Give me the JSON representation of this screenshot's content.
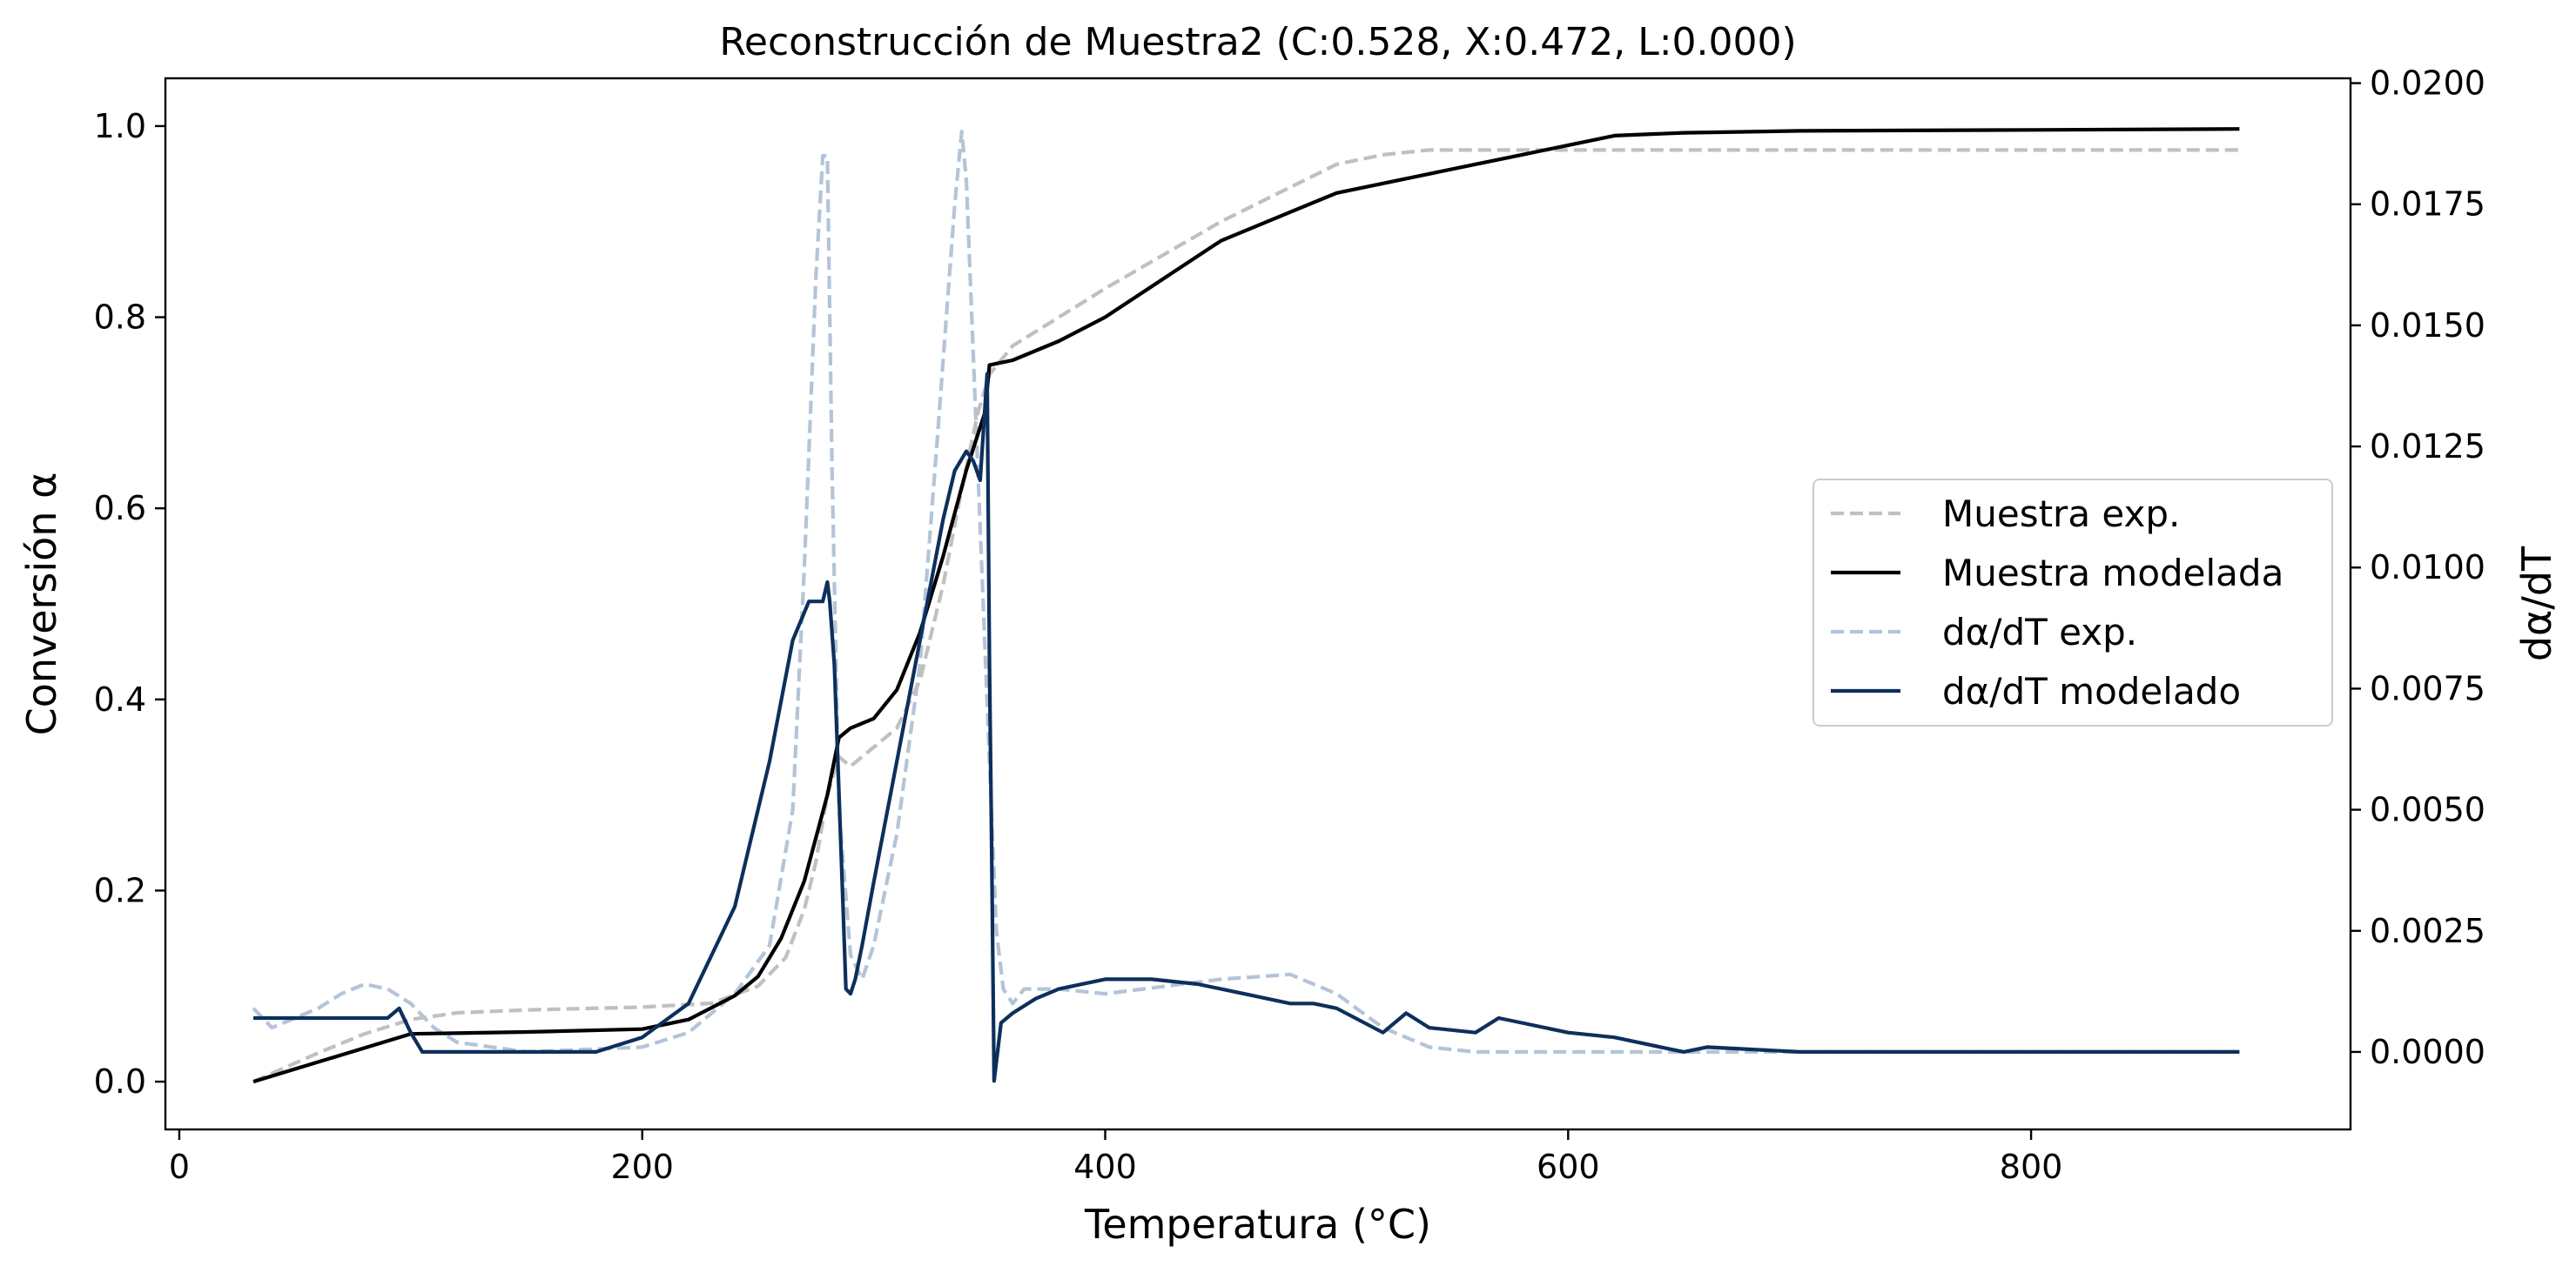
{
  "chart_data": {
    "type": "line",
    "title": "Reconstrucción de Muestra2 (C:0.528, X:0.472, L:0.000)",
    "xlabel": "Temperatura (°C)",
    "ylabel": "Conversión α",
    "y2label": "dα/dT",
    "xlim": [
      -6,
      938
    ],
    "ylim": [
      -0.05,
      1.05
    ],
    "y2lim": [
      -0.0016,
      0.0201
    ],
    "xticks": [
      0,
      200,
      400,
      600,
      800
    ],
    "xtick_labels": [
      "0",
      "200",
      "400",
      "600",
      "800"
    ],
    "yticks": [
      0.0,
      0.2,
      0.4,
      0.6,
      0.8,
      1.0
    ],
    "ytick_labels": [
      "0.0",
      "0.2",
      "0.4",
      "0.6",
      "0.8",
      "1.0"
    ],
    "y2ticks": [
      0.0,
      0.0025,
      0.005,
      0.0075,
      0.01,
      0.0125,
      0.015,
      0.0175,
      0.02
    ],
    "y2tick_labels": [
      "0.0000",
      "0.0025",
      "0.0050",
      "0.0075",
      "0.0100",
      "0.0125",
      "0.0150",
      "0.0175",
      "0.0200"
    ],
    "grid": false,
    "legend_position": "center-right",
    "series": [
      {
        "name": "Muestra exp.",
        "axis": "left",
        "color": "#c0c0c0",
        "style": "dashed",
        "x": [
          32,
          60,
          80,
          100,
          120,
          150,
          200,
          230,
          250,
          262,
          270,
          275,
          280,
          285,
          290,
          300,
          310,
          320,
          330,
          338,
          345,
          350,
          360,
          400,
          450,
          500,
          520,
          540,
          600,
          700,
          800,
          890
        ],
        "y": [
          0.0,
          0.03,
          0.05,
          0.065,
          0.072,
          0.075,
          0.078,
          0.082,
          0.1,
          0.13,
          0.18,
          0.23,
          0.3,
          0.34,
          0.33,
          0.35,
          0.37,
          0.42,
          0.52,
          0.62,
          0.7,
          0.74,
          0.77,
          0.83,
          0.9,
          0.96,
          0.97,
          0.975,
          0.975,
          0.975,
          0.975,
          0.975
        ]
      },
      {
        "name": "Muestra modelada",
        "axis": "left",
        "color": "#000000",
        "style": "solid",
        "x": [
          32,
          100,
          150,
          200,
          220,
          240,
          250,
          260,
          270,
          280,
          285,
          290,
          300,
          310,
          320,
          330,
          340,
          348,
          350,
          360,
          380,
          400,
          450,
          480,
          500,
          520,
          540,
          560,
          580,
          600,
          620,
          650,
          700,
          800,
          890
        ],
        "y": [
          0.0,
          0.05,
          0.052,
          0.055,
          0.065,
          0.09,
          0.11,
          0.15,
          0.21,
          0.3,
          0.36,
          0.37,
          0.38,
          0.41,
          0.47,
          0.55,
          0.64,
          0.7,
          0.75,
          0.755,
          0.775,
          0.8,
          0.88,
          0.91,
          0.93,
          0.94,
          0.95,
          0.96,
          0.97,
          0.98,
          0.99,
          0.993,
          0.995,
          0.996,
          0.997
        ]
      },
      {
        "name": "dα/dT exp.",
        "axis": "right",
        "color": "#b4c4d8",
        "style": "dashed",
        "x": [
          32,
          40,
          50,
          60,
          70,
          80,
          90,
          100,
          110,
          120,
          150,
          200,
          220,
          240,
          255,
          265,
          270,
          275,
          278,
          280,
          282,
          285,
          290,
          295,
          300,
          310,
          320,
          328,
          335,
          338,
          340,
          345,
          350,
          353,
          356,
          360,
          365,
          380,
          400,
          450,
          480,
          500,
          520,
          540,
          560,
          600,
          700,
          890
        ],
        "y": [
          0.0009,
          0.0005,
          0.0007,
          0.0009,
          0.0012,
          0.0014,
          0.0013,
          0.001,
          0.0005,
          0.0002,
          0.0,
          0.0001,
          0.0004,
          0.0012,
          0.0022,
          0.005,
          0.01,
          0.016,
          0.0185,
          0.0185,
          0.012,
          0.005,
          0.002,
          0.0015,
          0.0022,
          0.0045,
          0.008,
          0.013,
          0.0175,
          0.019,
          0.018,
          0.012,
          0.006,
          0.0025,
          0.0013,
          0.001,
          0.0013,
          0.0013,
          0.0012,
          0.0015,
          0.0016,
          0.0012,
          0.0005,
          0.0001,
          0.0,
          0.0,
          0.0,
          0.0
        ]
      },
      {
        "name": "dα/dT modelado",
        "axis": "right",
        "color": "#0d2f5c",
        "style": "solid",
        "x": [
          32,
          90,
          95,
          100,
          105,
          110,
          150,
          180,
          200,
          220,
          240,
          255,
          265,
          272,
          278,
          280,
          281,
          283,
          286,
          288,
          290,
          292,
          295,
          300,
          310,
          320,
          330,
          335,
          340,
          343,
          346,
          349,
          350,
          351,
          352,
          355,
          360,
          370,
          380,
          400,
          420,
          440,
          460,
          480,
          490,
          500,
          520,
          530,
          540,
          560,
          570,
          580,
          600,
          620,
          640,
          650,
          660,
          700,
          800,
          890
        ],
        "y": [
          0.0007,
          0.0007,
          0.0009,
          0.0004,
          0.0,
          0.0,
          0.0,
          0.0,
          0.0003,
          0.001,
          0.003,
          0.006,
          0.0085,
          0.0093,
          0.0093,
          0.0097,
          0.0093,
          0.008,
          0.004,
          0.0013,
          0.0012,
          0.0015,
          0.0022,
          0.0035,
          0.006,
          0.0085,
          0.011,
          0.012,
          0.0124,
          0.0122,
          0.0118,
          0.014,
          0.008,
          0.004,
          -0.0006,
          0.0006,
          0.0008,
          0.0011,
          0.0013,
          0.0015,
          0.0015,
          0.0014,
          0.0012,
          0.001,
          0.001,
          0.0009,
          0.0004,
          0.0008,
          0.0005,
          0.0004,
          0.0007,
          0.0006,
          0.0004,
          0.0003,
          0.0001,
          0.0,
          0.0001,
          0.0,
          0.0,
          0.0
        ]
      }
    ]
  }
}
